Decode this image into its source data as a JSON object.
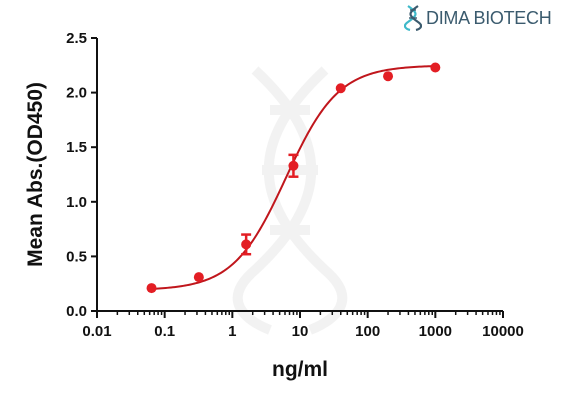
{
  "logo": {
    "text": "DIMA BIOTECH",
    "color": "#3b5b6e",
    "icon": "dna-icon",
    "accent": "#3fb9c9"
  },
  "chart_data": {
    "type": "scatter",
    "xscale": "log",
    "xlabel": "ng/ml",
    "ylabel": "Mean Abs.(OD450)",
    "xlim": [
      0.01,
      10000
    ],
    "ylim": [
      0,
      2.5
    ],
    "xticks": [
      "0.01",
      "0.1",
      "1",
      "10",
      "100",
      "1000",
      "10000"
    ],
    "yticks": [
      "0.0",
      "0.5",
      "1.0",
      "1.5",
      "2.0",
      "2.5"
    ],
    "grid": false,
    "series": [
      {
        "color": "#e31e24",
        "x": [
          0.064,
          0.32,
          1.6,
          8,
          40,
          200,
          1000
        ],
        "y": [
          0.21,
          0.31,
          0.61,
          1.33,
          2.04,
          2.15,
          2.23
        ],
        "error": [
          0,
          0,
          0.09,
          0.1,
          0,
          0,
          0
        ]
      }
    ],
    "fit": {
      "type": "4PL",
      "bottom": 0.19,
      "top": 2.25,
      "ec50": 6.2,
      "hill": 1.12,
      "color": "#c0161c"
    }
  }
}
